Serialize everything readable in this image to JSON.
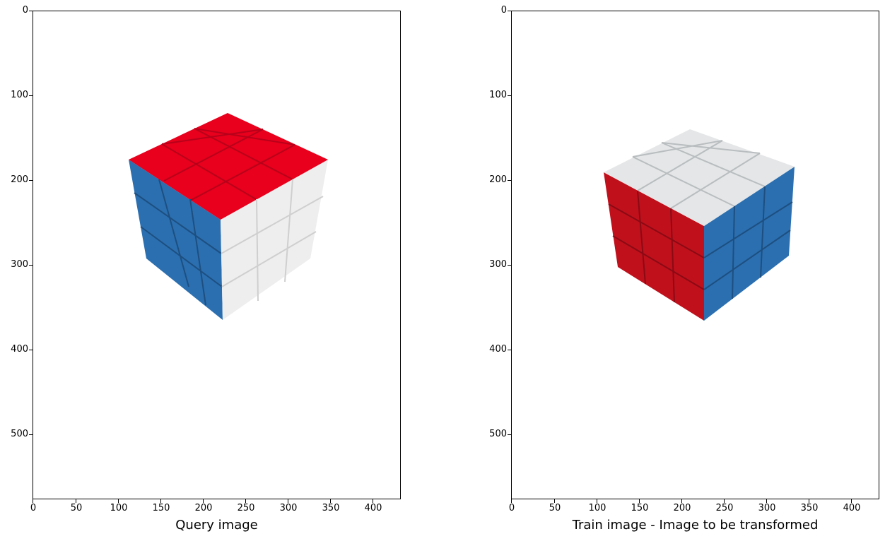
{
  "panels": [
    {
      "xlabel": "Query image",
      "xticks": [
        "0",
        "50",
        "100",
        "150",
        "200",
        "250",
        "300",
        "350",
        "400"
      ],
      "yticks": [
        "0",
        "100",
        "200",
        "300",
        "400",
        "500"
      ],
      "image": {
        "depicts": "rubiks-cube",
        "top_face": "#e8001c",
        "left_face": "#2b6fb0",
        "right_face": "#f2f2f2"
      }
    },
    {
      "xlabel": "Train image - Image to be transformed",
      "xticks": [
        "0",
        "50",
        "100",
        "150",
        "200",
        "250",
        "300",
        "350",
        "400"
      ],
      "yticks": [
        "0",
        "100",
        "200",
        "300",
        "400",
        "500"
      ],
      "image": {
        "depicts": "rubiks-cube",
        "top_face": "#e4e6e7",
        "left_face": "#c0101c",
        "right_face": "#2b6fb0"
      }
    }
  ]
}
